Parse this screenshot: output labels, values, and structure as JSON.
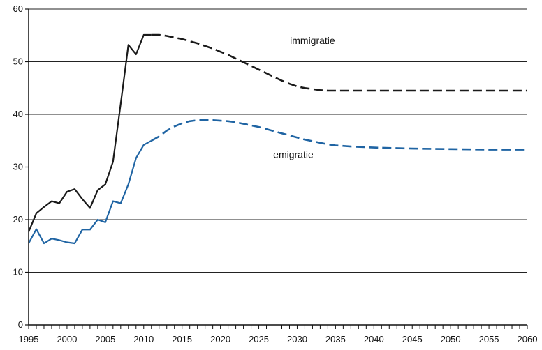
{
  "chart_data": {
    "type": "line",
    "title": "",
    "xlabel": "",
    "ylabel": "",
    "xlim": [
      1995,
      2060
    ],
    "ylim": [
      0,
      60
    ],
    "grid": true,
    "legend": "none",
    "y_ticks": [
      0,
      10,
      20,
      30,
      40,
      50,
      60
    ],
    "x_tick_labels": [
      1995,
      2000,
      2005,
      2010,
      2015,
      2020,
      2025,
      2030,
      2035,
      2040,
      2045,
      2050,
      2055,
      2060
    ],
    "colors": {
      "axis": "#111111",
      "grid": "#222222"
    },
    "series": [
      {
        "name": "immigratie",
        "color": "#1a1a1a",
        "observed_until": 2011,
        "x": [
          1995,
          1996,
          1997,
          1998,
          1999,
          2000,
          2001,
          2002,
          2003,
          2004,
          2005,
          2006,
          2007,
          2008,
          2009,
          2010,
          2011,
          2012,
          2013,
          2014,
          2015,
          2016,
          2017,
          2018,
          2019,
          2020,
          2021,
          2022,
          2023,
          2024,
          2025,
          2026,
          2027,
          2028,
          2029,
          2030,
          2031,
          2032,
          2033,
          2034,
          2035,
          2040,
          2045,
          2050,
          2055,
          2060
        ],
        "values": [
          17.7,
          21.2,
          22.4,
          23.5,
          23.1,
          25.3,
          25.8,
          23.9,
          22.2,
          25.6,
          26.7,
          31.0,
          42.0,
          53.2,
          51.4,
          55.1,
          55.1,
          55.1,
          54.9,
          54.6,
          54.3,
          53.9,
          53.5,
          53.0,
          52.5,
          51.9,
          51.3,
          50.6,
          49.9,
          49.2,
          48.5,
          47.8,
          47.1,
          46.4,
          45.8,
          45.3,
          45.0,
          44.8,
          44.6,
          44.5,
          44.5,
          44.5,
          44.5,
          44.5,
          44.5,
          44.5
        ]
      },
      {
        "name": "emigratie",
        "color": "#1f64a3",
        "observed_until": 2011,
        "x": [
          1995,
          1996,
          1997,
          1998,
          1999,
          2000,
          2001,
          2002,
          2003,
          2004,
          2005,
          2006,
          2007,
          2008,
          2009,
          2010,
          2011,
          2012,
          2013,
          2014,
          2015,
          2016,
          2017,
          2018,
          2019,
          2020,
          2021,
          2022,
          2023,
          2024,
          2025,
          2026,
          2027,
          2028,
          2029,
          2030,
          2031,
          2032,
          2033,
          2034,
          2035,
          2037,
          2040,
          2045,
          2050,
          2055,
          2060
        ],
        "values": [
          15.5,
          18.2,
          15.5,
          16.4,
          16.1,
          15.7,
          15.5,
          18.1,
          18.1,
          20.0,
          19.5,
          23.5,
          23.1,
          26.7,
          31.7,
          34.2,
          35.0,
          35.8,
          36.9,
          37.7,
          38.3,
          38.7,
          38.9,
          38.9,
          38.9,
          38.8,
          38.7,
          38.5,
          38.2,
          37.9,
          37.6,
          37.2,
          36.8,
          36.4,
          36.0,
          35.6,
          35.2,
          34.9,
          34.6,
          34.3,
          34.1,
          33.9,
          33.7,
          33.5,
          33.4,
          33.3,
          33.3
        ]
      }
    ]
  }
}
